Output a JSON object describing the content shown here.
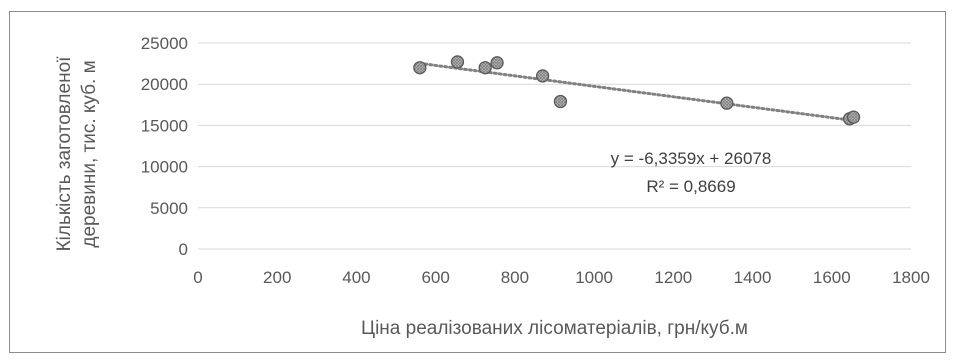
{
  "chart_data": {
    "type": "scatter",
    "xlabel": "Ціна реалізованих лісоматеріалів, грн/куб.м",
    "ylabel_lines": [
      "Кількість заготовленої",
      "деревини, тис. куб. м"
    ],
    "xlim": [
      0,
      1800
    ],
    "ylim": [
      0,
      25000
    ],
    "x_ticks": [
      "0",
      "200",
      "400",
      "600",
      "800",
      "1000",
      "1200",
      "1400",
      "1600",
      "1800"
    ],
    "y_ticks": [
      "0",
      "5000",
      "10000",
      "15000",
      "20000",
      "25000"
    ],
    "grid": "horizontal",
    "series": [
      {
        "points": [
          [
            560,
            22000
          ],
          [
            655,
            22700
          ],
          [
            725,
            22000
          ],
          [
            755,
            22600
          ],
          [
            870,
            21000
          ],
          [
            915,
            17900
          ],
          [
            1335,
            17700
          ],
          [
            1645,
            15800
          ],
          [
            1655,
            16000
          ]
        ]
      }
    ],
    "trendline": {
      "type": "linear",
      "slope": -6.3359,
      "intercept": 26078,
      "x_range": [
        560,
        1655
      ],
      "equation": "y = -6,3359x + 26078",
      "r_squared": "R² = 0,8669"
    },
    "colors": {
      "marker_fill": "#a6a6a6",
      "marker_stroke": "#595959",
      "trendline": "#808080",
      "gridline": "#d9d9d9",
      "text": "#595959"
    }
  }
}
